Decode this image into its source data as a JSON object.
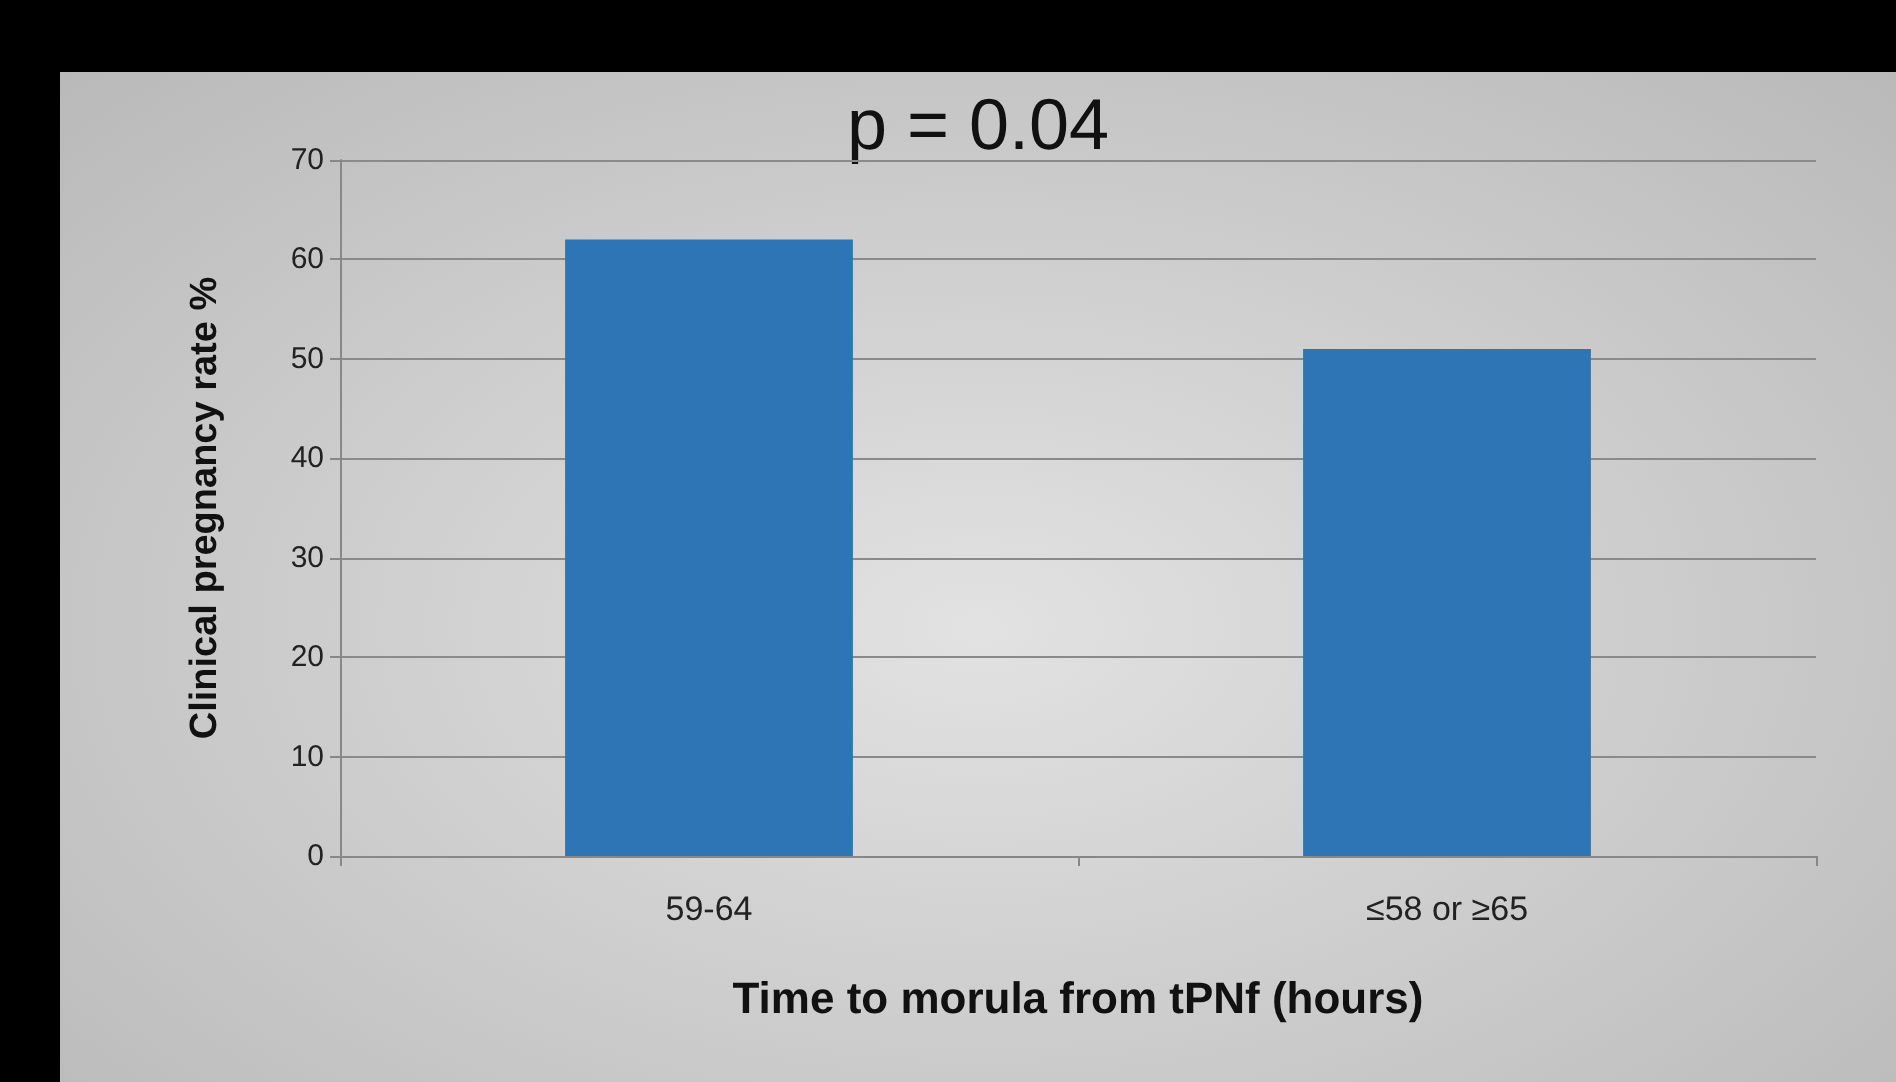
{
  "chart_data": {
    "type": "bar",
    "xlabel": "Time to morula from tPNf (hours)",
    "ylabel": "Clinical pregnancy rate %",
    "categories": [
      "59-64",
      "≤58 or ≥65"
    ],
    "series": [
      {
        "color": "#2e75b6",
        "values": [
          62,
          51
        ]
      }
    ],
    "ylim": [
      0,
      70
    ],
    "yticks": [
      0,
      10,
      20,
      30,
      40,
      50,
      60,
      70
    ],
    "grid": "y",
    "annotations": [
      "p = 0.04"
    ]
  }
}
